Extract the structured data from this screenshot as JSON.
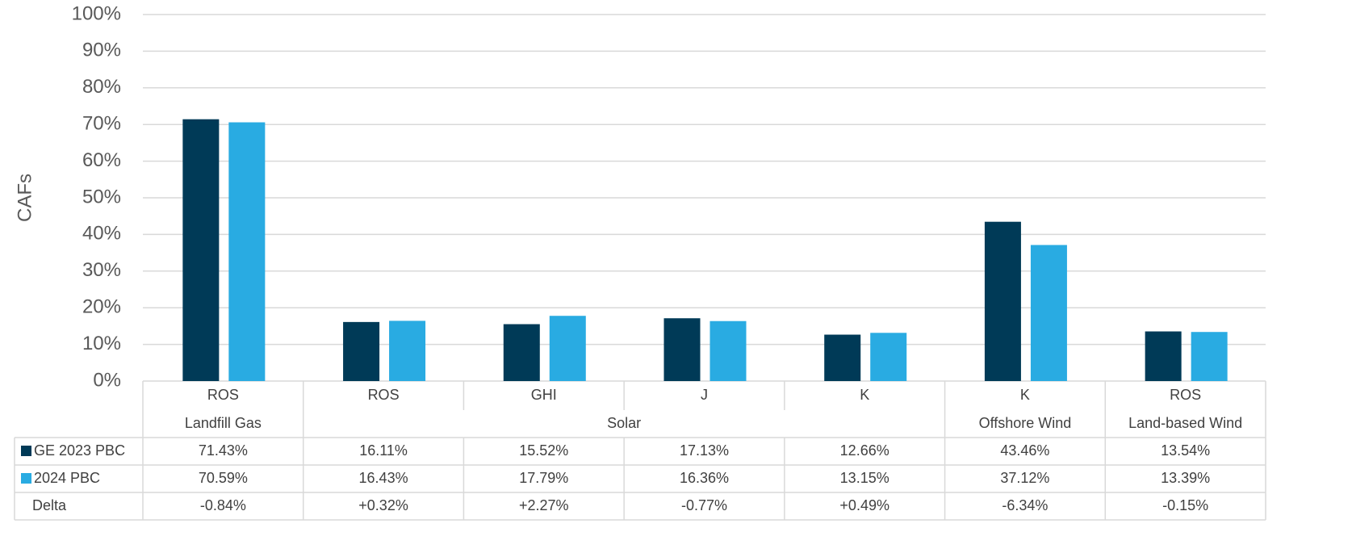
{
  "chart_data": {
    "type": "bar",
    "y_label": "CAFs",
    "categories": [
      "ROS",
      "ROS",
      "GHI",
      "J",
      "K",
      "K",
      "ROS"
    ],
    "group_labels": [
      "Landfill Gas",
      "Solar",
      null,
      null,
      null,
      "Offshore Wind",
      "Land-based Wind"
    ],
    "series": [
      {
        "name": "GE 2023 PBC",
        "color": "#003a57",
        "values": [
          71.43,
          16.11,
          15.52,
          17.13,
          12.66,
          43.46,
          13.54
        ],
        "value_labels": [
          "71.43%",
          "16.11%",
          "15.52%",
          "17.13%",
          "12.66%",
          "43.46%",
          "13.54%"
        ]
      },
      {
        "name": "2024 PBC",
        "color": "#29abe2",
        "values": [
          70.59,
          16.43,
          17.79,
          16.36,
          13.15,
          37.12,
          13.39
        ],
        "value_labels": [
          "70.59%",
          "16.43%",
          "17.79%",
          "16.36%",
          "13.15%",
          "37.12%",
          "13.39%"
        ]
      }
    ],
    "delta": {
      "name": "Delta",
      "values": [
        "-0.84%",
        "+0.32%",
        "+2.27%",
        "-0.77%",
        "+0.49%",
        "-6.34%",
        "-0.15%"
      ]
    },
    "ylim": [
      0,
      100
    ],
    "yticks": [
      {
        "value": 0,
        "label": "0%"
      },
      {
        "value": 10,
        "label": "10%"
      },
      {
        "value": 20,
        "label": "20%"
      },
      {
        "value": 30,
        "label": "30%"
      },
      {
        "value": 40,
        "label": "40%"
      },
      {
        "value": 50,
        "label": "50%"
      },
      {
        "value": 60,
        "label": "60%"
      },
      {
        "value": 70,
        "label": "70%"
      },
      {
        "value": 80,
        "label": "80%"
      },
      {
        "value": 90,
        "label": "90%"
      },
      {
        "value": 100,
        "label": "100%"
      }
    ],
    "grid": true
  }
}
